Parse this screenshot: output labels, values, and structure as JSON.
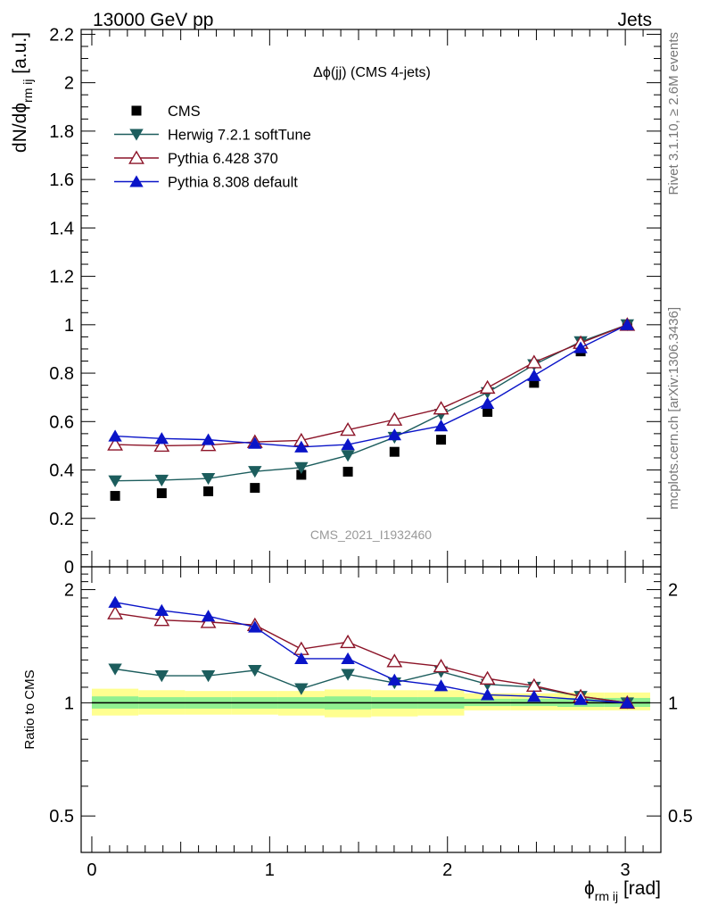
{
  "header": {
    "left": "13000 GeV pp",
    "right": "Jets"
  },
  "side_labels": {
    "rivet": "Rivet 3.1.10, ≥ 2.6M events",
    "mcplots": "mcplots.cern.ch [arXiv:1306.3436]"
  },
  "chart_data": [
    {
      "type": "scatter",
      "title": "Δϕ(jj) (CMS 4-jets)",
      "watermark": "CMS_2021_I1932460",
      "ylabel": "dN/dϕrm ij [a.u.]",
      "ylabel_parts": {
        "main": "dN/dϕ",
        "sub": "rm ij",
        "unit": " [a.u.]"
      },
      "xlim": [
        -0.06,
        3.2
      ],
      "ylim": [
        0,
        2.22
      ],
      "yticks": [
        0,
        0.2,
        0.4,
        0.6,
        0.8,
        1,
        1.2,
        1.4,
        1.6,
        1.8,
        2,
        2.2
      ],
      "legend": "top-left",
      "x": [
        0.131,
        0.393,
        0.655,
        0.917,
        1.178,
        1.44,
        1.702,
        1.964,
        2.225,
        2.487,
        2.749,
        3.011
      ],
      "series": [
        {
          "name": "CMS",
          "color": "#000000",
          "marker": "square",
          "values": [
            0.293,
            0.304,
            0.312,
            0.326,
            0.38,
            0.393,
            0.475,
            0.525,
            0.64,
            0.76,
            0.89,
            1.0
          ]
        },
        {
          "name": "Herwig 7.2.1 softTune",
          "color": "#1c5d5d",
          "marker": "triangle-down",
          "values": [
            0.355,
            0.358,
            0.365,
            0.394,
            0.41,
            0.46,
            0.535,
            0.63,
            0.72,
            0.835,
            0.93,
            1.0
          ]
        },
        {
          "name": "Pythia 6.428 370",
          "color": "#8c1428",
          "marker": "triangle-up-open",
          "values": [
            0.505,
            0.5,
            0.503,
            0.516,
            0.522,
            0.566,
            0.608,
            0.654,
            0.74,
            0.845,
            0.925,
            1.0
          ]
        },
        {
          "name": "Pythia 8.308 default",
          "color": "#0a14c8",
          "marker": "triangle-up",
          "values": [
            0.54,
            0.53,
            0.525,
            0.51,
            0.495,
            0.505,
            0.545,
            0.582,
            0.675,
            0.79,
            0.905,
            1.0
          ]
        }
      ]
    },
    {
      "type": "line",
      "ylabel": "Ratio to CMS",
      "xlabel": "ϕrm ij [rad]",
      "xlabel_parts": {
        "main": "ϕ",
        "sub": "rm ij",
        "unit": " [rad]"
      },
      "xlim": [
        -0.06,
        3.2
      ],
      "ylim": [
        0.4,
        2.3
      ],
      "yscale": "log",
      "yticks": [
        0.5,
        1,
        2
      ],
      "xticks": [
        0,
        1,
        2,
        3
      ],
      "x": [
        0.131,
        0.393,
        0.655,
        0.917,
        1.178,
        1.44,
        1.702,
        1.964,
        2.225,
        2.487,
        2.749,
        3.011
      ],
      "band_colors": {
        "inner": "#90f090",
        "outer": "#ffff90"
      },
      "bands": [
        {
          "x0": 0.0,
          "x1": 0.262,
          "inner": [
            0.965,
            1.04
          ],
          "outer": [
            0.925,
            1.09
          ]
        },
        {
          "x0": 0.262,
          "x1": 0.524,
          "inner": [
            0.965,
            1.035
          ],
          "outer": [
            0.93,
            1.08
          ]
        },
        {
          "x0": 0.524,
          "x1": 0.786,
          "inner": [
            0.965,
            1.035
          ],
          "outer": [
            0.93,
            1.075
          ]
        },
        {
          "x0": 0.786,
          "x1": 1.048,
          "inner": [
            0.965,
            1.035
          ],
          "outer": [
            0.93,
            1.075
          ]
        },
        {
          "x0": 1.048,
          "x1": 1.309,
          "inner": [
            0.965,
            1.035
          ],
          "outer": [
            0.925,
            1.075
          ]
        },
        {
          "x0": 1.309,
          "x1": 1.571,
          "inner": [
            0.96,
            1.04
          ],
          "outer": [
            0.915,
            1.085
          ]
        },
        {
          "x0": 1.571,
          "x1": 1.833,
          "inner": [
            0.965,
            1.035
          ],
          "outer": [
            0.92,
            1.08
          ]
        },
        {
          "x0": 1.833,
          "x1": 2.094,
          "inner": [
            0.965,
            1.035
          ],
          "outer": [
            0.925,
            1.08
          ]
        },
        {
          "x0": 2.094,
          "x1": 2.356,
          "inner": [
            0.98,
            1.025
          ],
          "outer": [
            0.955,
            1.06
          ]
        },
        {
          "x0": 2.356,
          "x1": 2.618,
          "inner": [
            0.98,
            1.025
          ],
          "outer": [
            0.955,
            1.06
          ]
        },
        {
          "x0": 2.618,
          "x1": 2.88,
          "inner": [
            0.975,
            1.03
          ],
          "outer": [
            0.955,
            1.065
          ]
        },
        {
          "x0": 2.88,
          "x1": 3.14,
          "inner": [
            0.975,
            1.03
          ],
          "outer": [
            0.955,
            1.065
          ]
        }
      ],
      "series": [
        {
          "name": "Herwig 7.2.1 softTune",
          "color": "#1c5d5d",
          "marker": "triangle-down",
          "values": [
            1.23,
            1.18,
            1.18,
            1.22,
            1.09,
            1.19,
            1.13,
            1.21,
            1.12,
            1.1,
            1.04,
            1.0
          ]
        },
        {
          "name": "Pythia 6.428 370",
          "color": "#8c1428",
          "marker": "triangle-up-open",
          "values": [
            1.73,
            1.66,
            1.64,
            1.61,
            1.39,
            1.45,
            1.29,
            1.25,
            1.16,
            1.11,
            1.04,
            1.0
          ]
        },
        {
          "name": "Pythia 8.308 default",
          "color": "#0a14c8",
          "marker": "triangle-up",
          "values": [
            1.85,
            1.76,
            1.7,
            1.59,
            1.31,
            1.31,
            1.15,
            1.11,
            1.05,
            1.04,
            1.02,
            1.0
          ]
        }
      ]
    }
  ]
}
